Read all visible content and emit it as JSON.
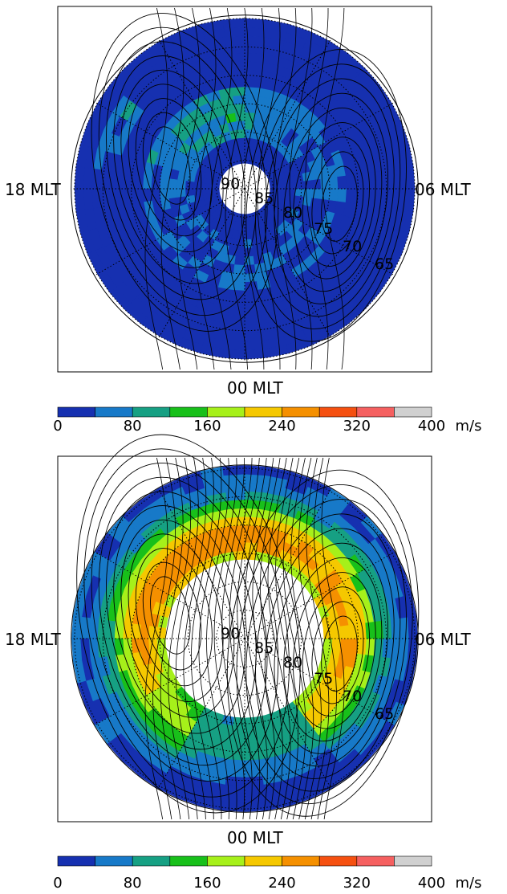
{
  "chart_data": [
    {
      "type": "heatmap",
      "projection": "polar (magnetic latitude vs magnetic local time)",
      "mlt_labels": {
        "top": "",
        "left": "18 MLT",
        "right": "06 MLT",
        "bottom": "00 MLT"
      },
      "latitude_labels": [
        "90",
        "85",
        "80",
        "75",
        "70",
        "65"
      ],
      "latitude_range": [
        60,
        90
      ],
      "grid": true,
      "colorbar": {
        "ticks": [
          "0",
          "80",
          "160",
          "240",
          "320",
          "400"
        ],
        "unit": "m/s",
        "range": [
          0,
          400
        ],
        "bins": 10,
        "colors": [
          "#1630b0",
          "#1779c8",
          "#16a083",
          "#18c01a",
          "#a6f01a",
          "#f5c800",
          "#f59000",
          "#f55010",
          "#f56060",
          "#d0d0d0"
        ]
      },
      "data_free_cap_colatitude_deg": 4.5,
      "peak_speed_band_ms": [
        40,
        200
      ],
      "contours": "electric potential contours (two-cell convection pattern)"
    },
    {
      "type": "heatmap",
      "projection": "polar (magnetic latitude vs magnetic local time)",
      "mlt_labels": {
        "top": "",
        "left": "18 MLT",
        "right": "06 MLT",
        "bottom": "00 MLT"
      },
      "latitude_labels": [
        "90",
        "85",
        "80",
        "75",
        "70",
        "65"
      ],
      "latitude_range": [
        60,
        90
      ],
      "grid": true,
      "colorbar": {
        "ticks": [
          "0",
          "80",
          "160",
          "240",
          "320",
          "400"
        ],
        "unit": "m/s",
        "range": [
          0,
          400
        ],
        "bins": 10,
        "colors": [
          "#1630b0",
          "#1779c8",
          "#16a083",
          "#18c01a",
          "#a6f01a",
          "#f5c800",
          "#f59000",
          "#f55010",
          "#f56060",
          "#d0d0d0"
        ]
      },
      "data_free_cap_colatitude_deg": 14,
      "peak_speed_band_ms": [
        160,
        320
      ],
      "contours": "electric potential contours (two-cell convection pattern)"
    }
  ],
  "colors": {
    "background": "#ffffff",
    "axis": "#000000",
    "no_data": "#ffffff"
  }
}
